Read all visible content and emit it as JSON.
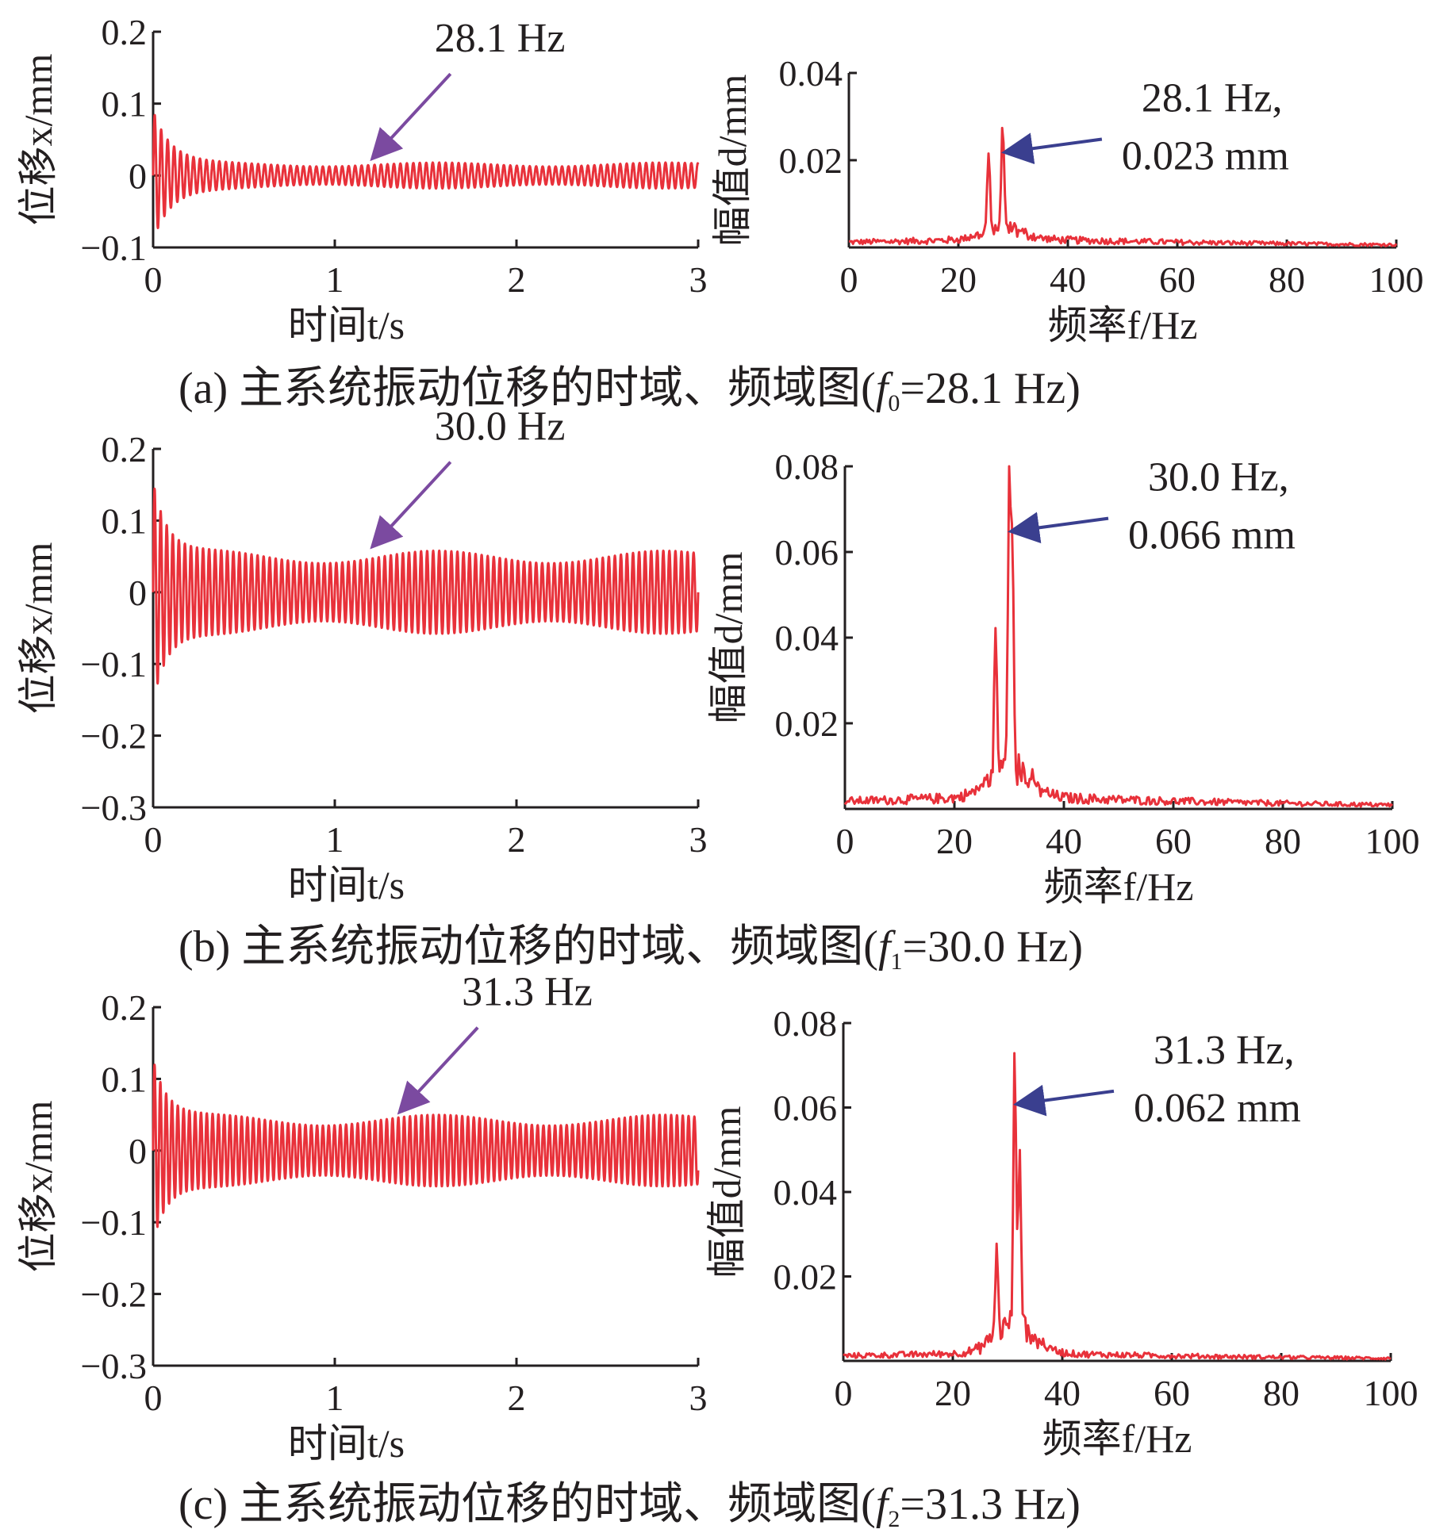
{
  "colors": {
    "series": "#e8313a",
    "axis": "#231f20",
    "arrow_time": "#7b4aa0",
    "arrow_freq": "#3a3f8f"
  },
  "chart_data": [
    {
      "id": "a-time",
      "type": "line",
      "row": "a",
      "xlabel": "时间t/s",
      "ylabel": "位移x/mm",
      "xlim": [
        0,
        3
      ],
      "ylim": [
        -0.1,
        0.2
      ],
      "xticks": [
        "0",
        "1",
        "2",
        "3"
      ],
      "yticks": [
        "−0.1",
        "0",
        "0.1",
        "0.2"
      ],
      "ytick_values": [
        -0.1,
        0,
        0.1,
        0.2
      ],
      "annotation": {
        "text": "28.1 Hz",
        "x": 1.2,
        "y": 0.02
      },
      "signal": {
        "freq_hz": 28.1,
        "steady_amplitude": 0.018,
        "transient_amplitude": 0.075,
        "transient_decay_s": 0.1
      }
    },
    {
      "id": "a-freq",
      "type": "line",
      "row": "a",
      "xlabel": "频率f/Hz",
      "ylabel": "幅值d/mm",
      "xlim": [
        0,
        100
      ],
      "ylim": [
        0,
        0.04
      ],
      "xticks": [
        "0",
        "20",
        "40",
        "60",
        "80",
        "100"
      ],
      "yticks": [
        "0.02",
        "0.04"
      ],
      "ytick_values": [
        0.02,
        0.04
      ],
      "annotation": {
        "text_line1": "28.1 Hz,",
        "text_line2": "0.023 mm",
        "x": 28.1,
        "y": 0.023
      },
      "peaks": [
        {
          "x": 25.5,
          "y": 0.018
        },
        {
          "x": 28.1,
          "y": 0.023
        }
      ],
      "noise_floor": 0.002
    },
    {
      "id": "b-time",
      "type": "line",
      "row": "b",
      "xlabel": "时间t/s",
      "ylabel": "位移x/mm",
      "xlim": [
        0,
        3
      ],
      "ylim": [
        -0.3,
        0.2
      ],
      "xticks": [
        "0",
        "1",
        "2",
        "3"
      ],
      "yticks": [
        "−0.3",
        "−0.2",
        "−0.1",
        "0",
        "0.1",
        "0.2"
      ],
      "ytick_values": [
        -0.3,
        -0.2,
        -0.1,
        0,
        0.1,
        0.2
      ],
      "annotation": {
        "text": "30.0 Hz",
        "x": 1.2,
        "y": 0.06
      },
      "signal": {
        "freq_hz": 30.0,
        "steady_amplitude": 0.058,
        "transient_amplitude": 0.105,
        "transient_decay_s": 0.08
      }
    },
    {
      "id": "b-freq",
      "type": "line",
      "row": "b",
      "xlabel": "频率f/Hz",
      "ylabel": "幅值d/mm",
      "xlim": [
        0,
        100
      ],
      "ylim": [
        0,
        0.08
      ],
      "xticks": [
        "0",
        "20",
        "40",
        "60",
        "80",
        "100"
      ],
      "yticks": [
        "0.02",
        "0.04",
        "0.06",
        "0.08"
      ],
      "ytick_values": [
        0.02,
        0.04,
        0.06,
        0.08
      ],
      "annotation": {
        "text_line1": "30.0 Hz,",
        "text_line2": "0.066 mm",
        "x": 30.0,
        "y": 0.066
      },
      "peaks": [
        {
          "x": 27.5,
          "y": 0.033
        },
        {
          "x": 30.0,
          "y": 0.066
        },
        {
          "x": 30.6,
          "y": 0.05
        }
      ],
      "noise_floor": 0.003
    },
    {
      "id": "c-time",
      "type": "line",
      "row": "c",
      "xlabel": "时间t/s",
      "ylabel": "位移x/mm",
      "xlim": [
        0,
        3
      ],
      "ylim": [
        -0.3,
        0.2
      ],
      "xticks": [
        "0",
        "1",
        "2",
        "3"
      ],
      "yticks": [
        "−0.3",
        "−0.2",
        "−0.1",
        "0",
        "0.1",
        "0.2"
      ],
      "ytick_values": [
        -0.3,
        -0.2,
        -0.1,
        0,
        0.1,
        0.2
      ],
      "annotation": {
        "text": "31.3 Hz",
        "x": 1.35,
        "y": 0.05
      },
      "signal": {
        "freq_hz": 31.3,
        "steady_amplitude": 0.05,
        "transient_amplitude": 0.085,
        "transient_decay_s": 0.08
      }
    },
    {
      "id": "c-freq",
      "type": "line",
      "row": "c",
      "xlabel": "频率f/Hz",
      "ylabel": "幅值d/mm",
      "xlim": [
        0,
        100
      ],
      "ylim": [
        0,
        0.08
      ],
      "xticks": [
        "0",
        "20",
        "40",
        "60",
        "80",
        "100"
      ],
      "yticks": [
        "0.02",
        "0.04",
        "0.06",
        "0.08"
      ],
      "ytick_values": [
        0.02,
        0.04,
        0.06,
        0.08
      ],
      "annotation": {
        "text_line1": "31.3 Hz,",
        "text_line2": "0.062 mm",
        "x": 31.3,
        "y": 0.062
      },
      "peaks": [
        {
          "x": 28.0,
          "y": 0.021
        },
        {
          "x": 31.3,
          "y": 0.062
        },
        {
          "x": 32.2,
          "y": 0.04
        }
      ],
      "noise_floor": 0.002
    }
  ],
  "captions": {
    "a": {
      "prefix": "(a) 主系统振动位移的时域、频域图(",
      "sym": "f",
      "sub": "0",
      "suffix": "=28.1 Hz)"
    },
    "b": {
      "prefix": "(b) 主系统振动位移的时域、频域图(",
      "sym": "f",
      "sub": "1",
      "suffix": "=30.0 Hz)"
    },
    "c": {
      "prefix": "(c) 主系统振动位移的时域、频域图(",
      "sym": "f",
      "sub": "2",
      "suffix": "=31.3 Hz)"
    }
  }
}
